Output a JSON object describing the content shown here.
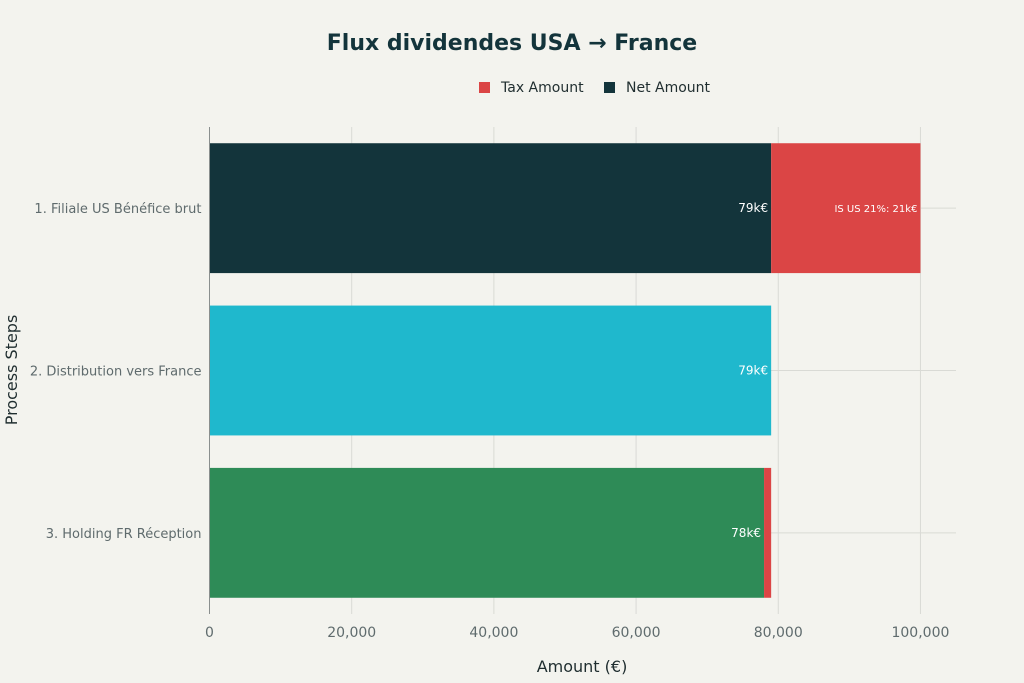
{
  "chart_data": {
    "type": "bar",
    "orientation": "horizontal",
    "stacked": true,
    "title": "Flux dividendes USA → France",
    "xlabel": "Amount (€)",
    "ylabel": "Process Steps",
    "xlim": [
      0,
      105000
    ],
    "xticks": [
      0,
      20000,
      40000,
      60000,
      80000,
      100000
    ],
    "xtick_labels": [
      "0",
      "20,000",
      "40,000",
      "60,000",
      "80,000",
      "100,000"
    ],
    "grid": true,
    "legend_position": "top-center",
    "legend": [
      {
        "label": "Tax Amount",
        "color": "#db4545"
      },
      {
        "label": "Net Amount",
        "color": "#13343b"
      }
    ],
    "categories": [
      "1. Filiale US Bénéfice brut",
      "2. Distribution vers France",
      "3. Holding FR Réception"
    ],
    "series": [
      {
        "name": "Net Amount",
        "values": [
          79000,
          79000,
          78000
        ],
        "colors": [
          "#13343b",
          "#1fb8cd",
          "#2e8b57"
        ],
        "labels": [
          "79k€",
          "79k€",
          "78k€"
        ]
      },
      {
        "name": "Tax Amount",
        "values": [
          21000,
          0,
          1000
        ],
        "colors": [
          "#db4545",
          "#db4545",
          "#db4545"
        ],
        "labels": [
          "IS US 21%: 21k€",
          "",
          ""
        ]
      }
    ]
  }
}
